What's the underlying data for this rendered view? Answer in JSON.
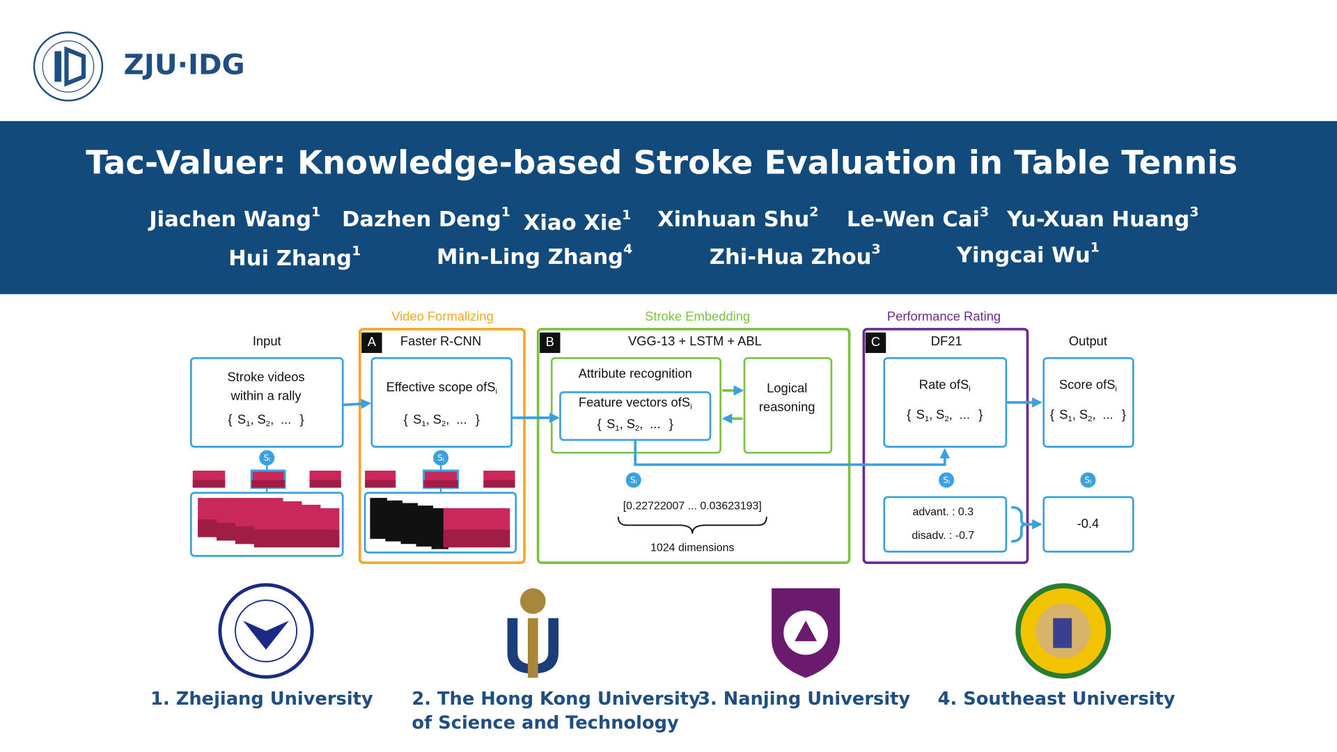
{
  "header": {
    "logo_text": "ZJU·IDG",
    "title": "Tac-Valuer: Knowledge-based Stroke Evaluation in Table Tennis"
  },
  "authors": [
    {
      "name": "Jiachen Wang",
      "affiliation": "1"
    },
    {
      "name": "Dazhen Deng",
      "affiliation": "1"
    },
    {
      "name": "Xiao Xie",
      "affiliation": "1"
    },
    {
      "name": "Xinhuan Shu",
      "affiliation": "2"
    },
    {
      "name": "Le-Wen Cai",
      "affiliation": "3"
    },
    {
      "name": "Yu-Xuan Huang",
      "affiliation": "3"
    },
    {
      "name": "Hui Zhang",
      "affiliation": "1"
    },
    {
      "name": "Min-Ling Zhang",
      "affiliation": "4"
    },
    {
      "name": "Zhi-Hua Zhou",
      "affiliation": "3"
    },
    {
      "name": "Yingcai Wu",
      "affiliation": "1"
    }
  ],
  "diagram": {
    "stages": [
      "Video Formalizing",
      "Stroke Embedding",
      "Performance Rating"
    ],
    "input_label": "Input",
    "output_label": "Output",
    "modules": [
      {
        "letter": "A",
        "name": "Faster R-CNN"
      },
      {
        "letter": "B",
        "name": "VGG-13 + LSTM + ABL"
      },
      {
        "letter": "C",
        "name": "DF21"
      }
    ],
    "set": {
      "open": "{",
      "items": [
        {
          "base": "S",
          "sub": "1"
        },
        {
          "base": "S",
          "sub": "2"
        }
      ],
      "separator": ",",
      "ellipsis": "...",
      "close": "}"
    },
    "stroke": {
      "base": "S",
      "sub": "i"
    },
    "input_box": [
      "Stroke videos",
      "within a rally"
    ],
    "scope_box": "Effective scope of",
    "attribute_recognition": "Attribute recognition",
    "feature_vectors": "Feature vectors of",
    "logical_reasoning": [
      "Logical",
      "reasoning"
    ],
    "rate": "Rate of",
    "score": "Score of",
    "vector": "[0.22722007 ... 0.03623193]",
    "dimensions": "1024 dimensions",
    "advantage": "advant. : 0.3",
    "disadvantage": "disadv. : -0.7",
    "output_value": "-0.4"
  },
  "affiliations": [
    [
      "1. Zhejiang University"
    ],
    [
      "2. The Hong Kong University",
      "of Science and Technology"
    ],
    [
      "3. Nanjing University"
    ],
    [
      "4. Southeast University"
    ]
  ]
}
